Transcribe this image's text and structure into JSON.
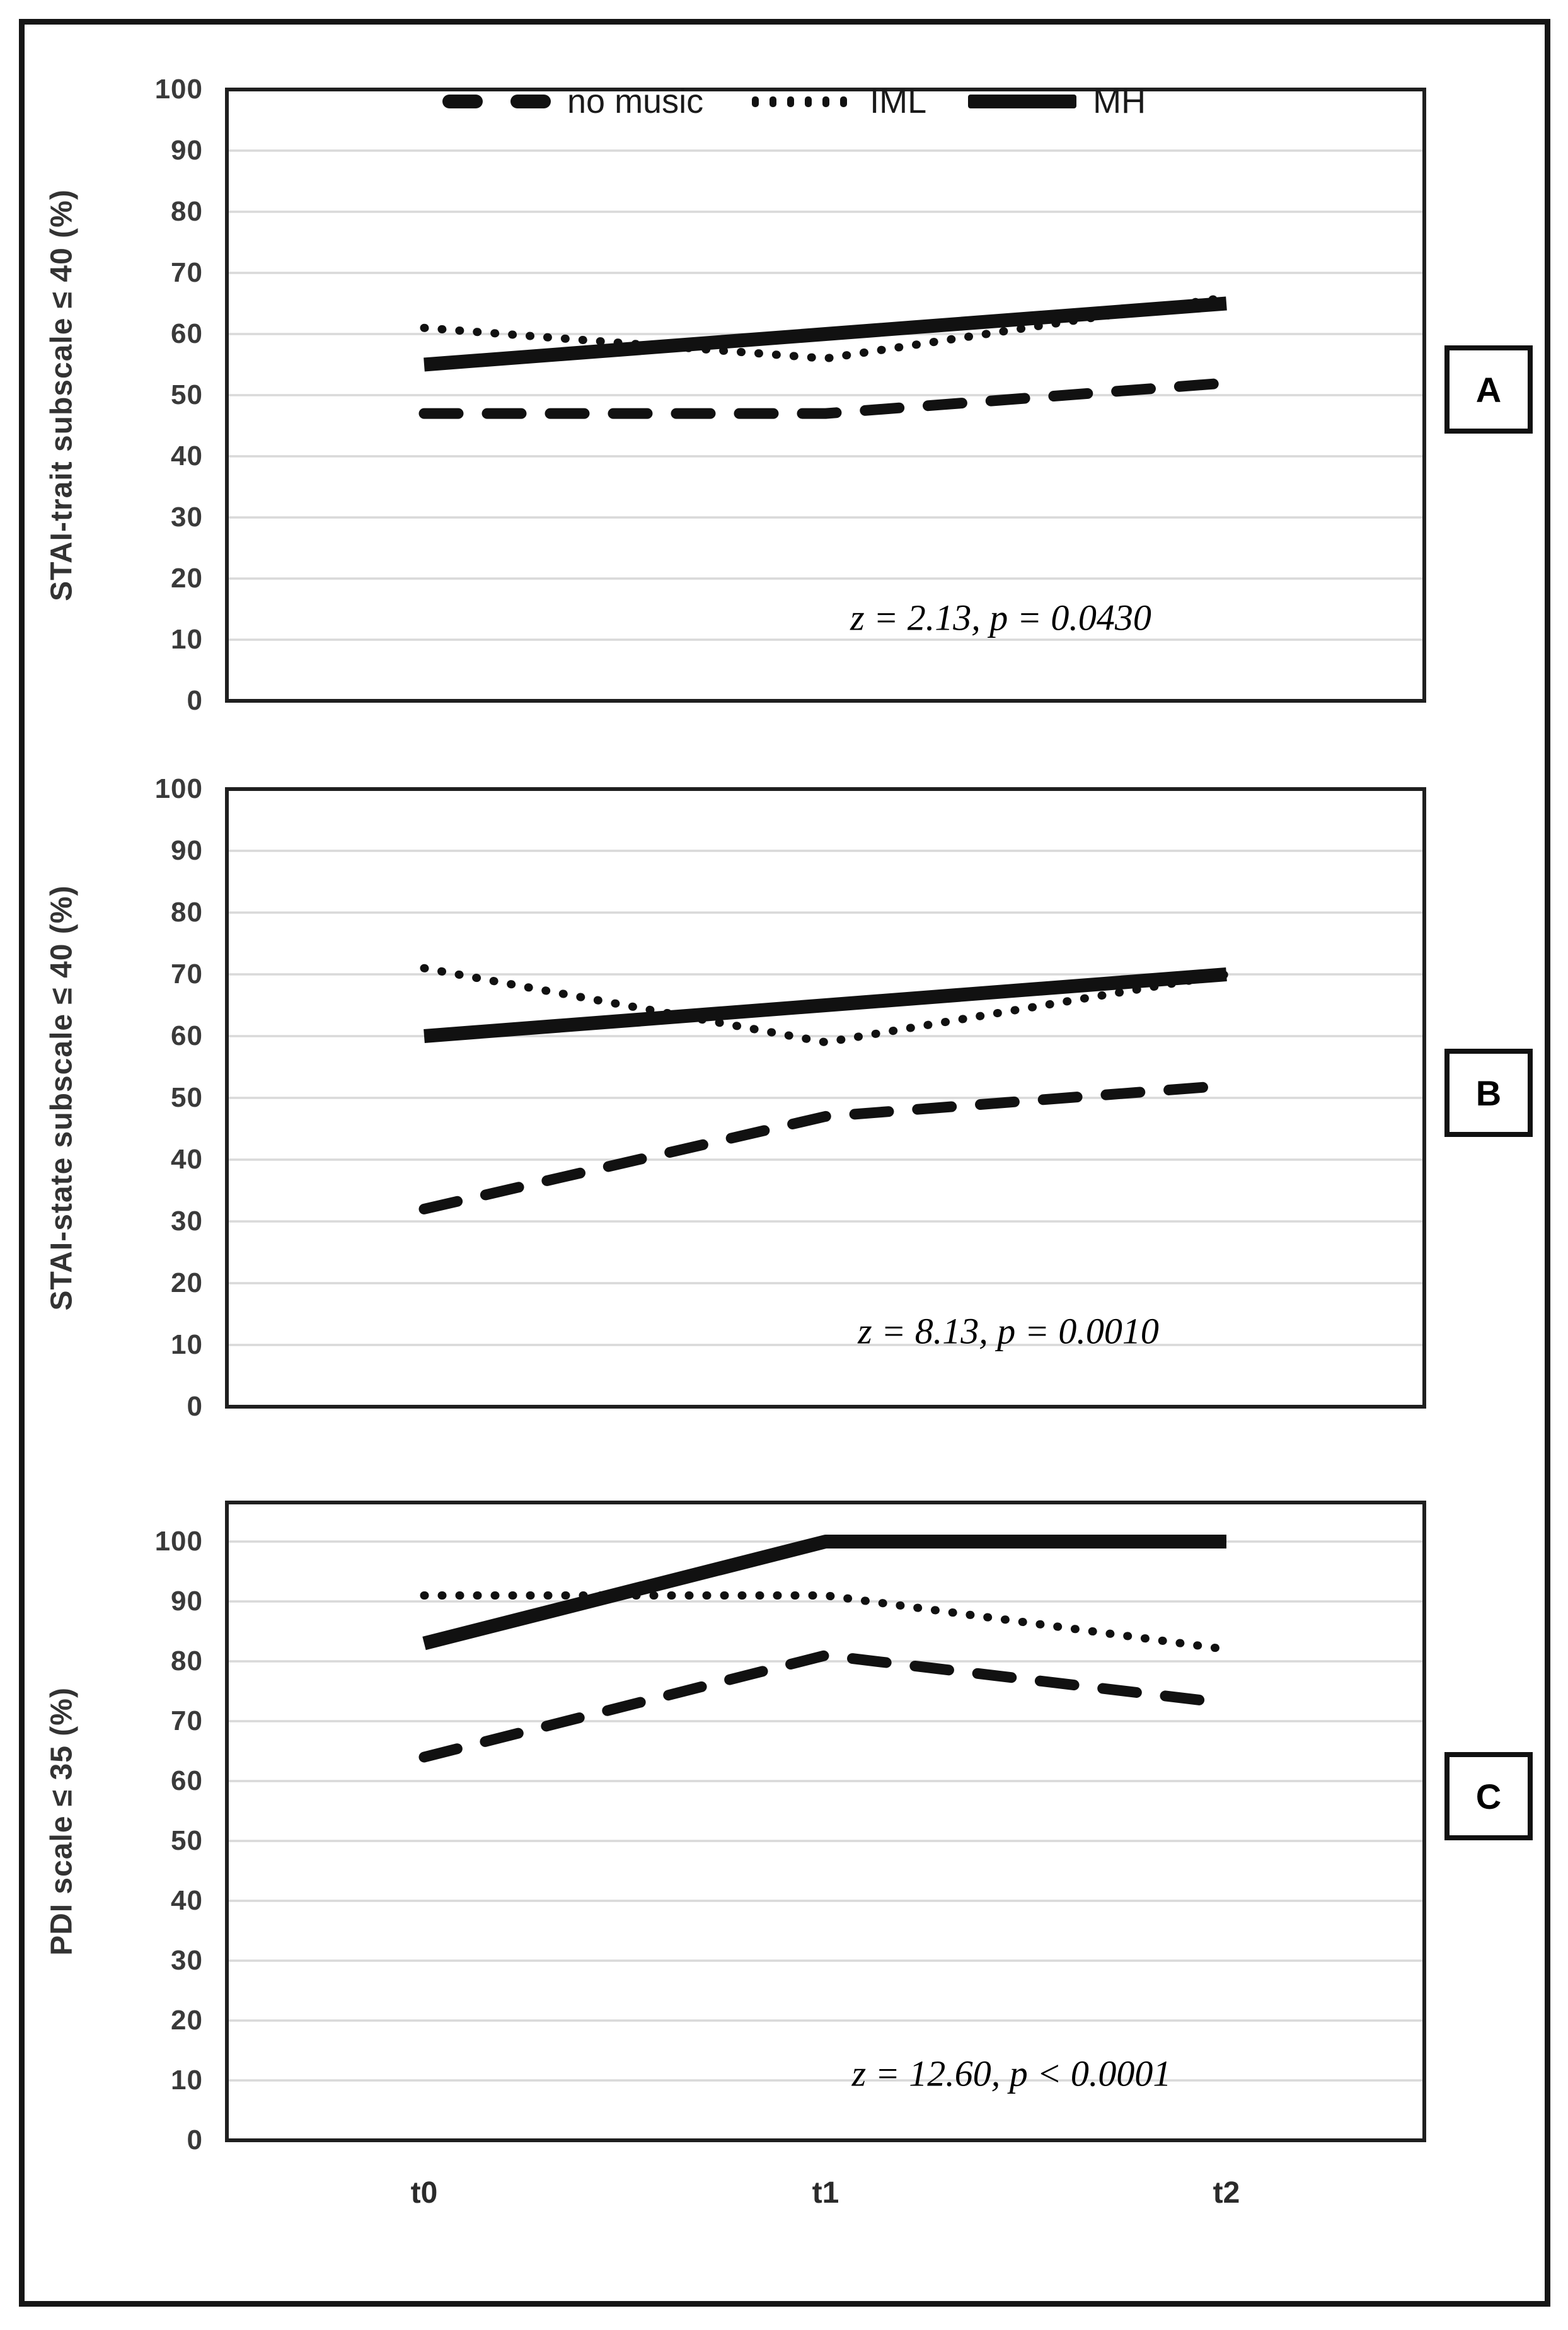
{
  "figure": {
    "x_axis_labels": [
      "t0",
      "t1",
      "t2"
    ],
    "panel_tags": [
      "A",
      "B",
      "C"
    ],
    "line_color": "#111111",
    "gridline_color": "#d9d9d9",
    "border_color": "#1f1f1f"
  },
  "chart_data": [
    {
      "type": "line",
      "panel_label": "A",
      "categories": [
        "t0",
        "t1",
        "t2"
      ],
      "series": [
        {
          "name": "no music",
          "style": "dashed",
          "values": [
            47,
            47,
            52
          ]
        },
        {
          "name": "IML",
          "style": "dotted",
          "values": [
            61,
            56,
            66
          ]
        },
        {
          "name": "MH",
          "style": "solid",
          "values": [
            55,
            60,
            65
          ]
        }
      ],
      "title": "",
      "xlabel": "",
      "ylabel": "STAI-trait subscale ≤ 40 (%)",
      "ylim": [
        0,
        100
      ],
      "ytick_step": 10,
      "grid": true,
      "legend_position": "top-inside",
      "annotation": "z = 2.13, p = 0.0430"
    },
    {
      "type": "line",
      "panel_label": "B",
      "categories": [
        "t0",
        "t1",
        "t2"
      ],
      "series": [
        {
          "name": "no music",
          "style": "dashed",
          "values": [
            32,
            47,
            52
          ]
        },
        {
          "name": "IML",
          "style": "dotted",
          "values": [
            71,
            59,
            70
          ]
        },
        {
          "name": "MH",
          "style": "solid",
          "values": [
            60,
            65,
            70
          ]
        }
      ],
      "title": "",
      "xlabel": "",
      "ylabel": "STAI-state subscale ≤ 40 (%)",
      "ylim": [
        0,
        100
      ],
      "ytick_step": 10,
      "grid": true,
      "legend_position": "none",
      "annotation": "z = 8.13, p = 0.0010"
    },
    {
      "type": "line",
      "panel_label": "C",
      "categories": [
        "t0",
        "t1",
        "t2"
      ],
      "series": [
        {
          "name": "no music",
          "style": "dashed",
          "values": [
            64,
            81,
            73
          ]
        },
        {
          "name": "IML",
          "style": "dotted",
          "values": [
            91,
            91,
            82
          ]
        },
        {
          "name": "MH",
          "style": "solid",
          "values": [
            83,
            100,
            100
          ]
        }
      ],
      "title": "",
      "xlabel": "",
      "ylabel": "PDI scale ≤ 35 (%)",
      "ylim": [
        0,
        107
      ],
      "ytick_step": 10,
      "grid": true,
      "legend_position": "none",
      "annotation": "z = 12.60, p < 0.0001"
    }
  ]
}
